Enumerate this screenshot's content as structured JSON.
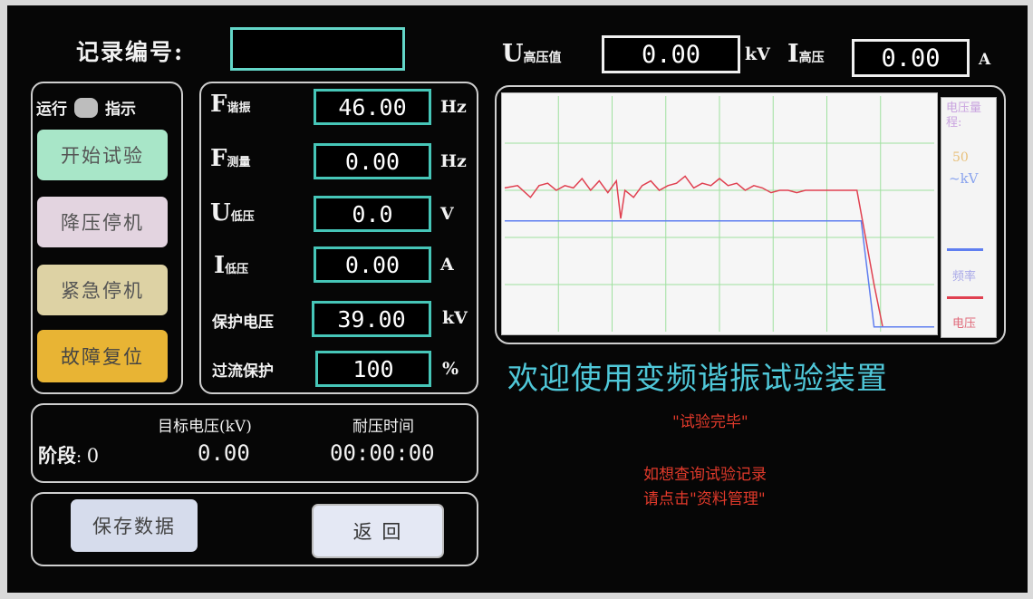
{
  "header": {
    "record_label": "记录编号:",
    "record_value": "",
    "u_symbol": "U",
    "u_sub": "高压值",
    "u_value": "0.00",
    "u_unit": "kV",
    "i_symbol": "I",
    "i_sub": "高压",
    "i_value": "0.00",
    "i_unit": "A"
  },
  "run_indicator": {
    "left": "运行",
    "right": "指示"
  },
  "buttons": {
    "start": "开始试验",
    "step_down": "降压停机",
    "emergency": "紧急停机",
    "reset": "故障复位",
    "save": "保存数据",
    "back": "返  回"
  },
  "params": [
    {
      "symbol": "F",
      "sub": "谐振",
      "value": "46.00",
      "unit": "Hz"
    },
    {
      "symbol": "F",
      "sub": "测量",
      "value": "0.00",
      "unit": "Hz"
    },
    {
      "symbol": "U",
      "sub": "低压",
      "value": "0.0",
      "unit": "V"
    },
    {
      "symbol": "I",
      "sub": "低压",
      "value": "0.00",
      "unit": "A"
    },
    {
      "label": "保护电压",
      "value": "39.00",
      "unit": "kV"
    },
    {
      "label": "过流保护",
      "value": "100",
      "unit": "%"
    }
  ],
  "stage": {
    "label": "阶段",
    "value": "0",
    "target_header": "目标电压(kV)",
    "target_value": "0.00",
    "time_header": "耐压时间",
    "time_value": "00:00:00"
  },
  "chart_legend": {
    "range_label": "电压量程:",
    "range_value": "50",
    "range_unit": "~kV",
    "freq": "频率",
    "volt": "电压"
  },
  "welcome": "欢迎使用变频谐振试验装置",
  "status": "\"试验完毕\"",
  "hint_line1": "如想查询试验记录",
  "hint_line2": "请点击\"资料管理\"",
  "colors": {
    "accent": "#4fc7d8",
    "box_border": "#46c6b8",
    "freq_line": "#5f7ef0",
    "volt_line": "#e04050"
  },
  "chart_data": {
    "type": "line",
    "xlim": [
      0,
      100
    ],
    "ylim": [
      0,
      100
    ],
    "grid": true,
    "series": [
      {
        "name": "电压",
        "x": [
          0,
          3,
          6,
          8,
          10,
          12,
          14,
          16,
          18,
          20,
          22,
          24,
          26,
          27,
          28,
          30,
          32,
          34,
          36,
          38,
          40,
          42,
          44,
          46,
          48,
          50,
          52,
          54,
          56,
          58,
          60,
          62,
          64,
          66,
          68,
          70,
          72,
          74,
          76,
          78,
          80,
          82,
          84,
          86,
          88,
          90,
          92,
          94,
          96,
          100
        ],
        "y": [
          61,
          62,
          57,
          62,
          63,
          60,
          62,
          61,
          65,
          60,
          64,
          59,
          64,
          48,
          60,
          57,
          62,
          64,
          60,
          62,
          63,
          66,
          61,
          63,
          62,
          65,
          62,
          63,
          60,
          62,
          61,
          59,
          60,
          60,
          59,
          60,
          60,
          60,
          60,
          60,
          60,
          60,
          40,
          20,
          2,
          2,
          2,
          2,
          2,
          2
        ]
      },
      {
        "name": "频率",
        "x": [
          0,
          83,
          86,
          100
        ],
        "y": [
          47,
          47,
          2,
          2
        ]
      }
    ]
  }
}
